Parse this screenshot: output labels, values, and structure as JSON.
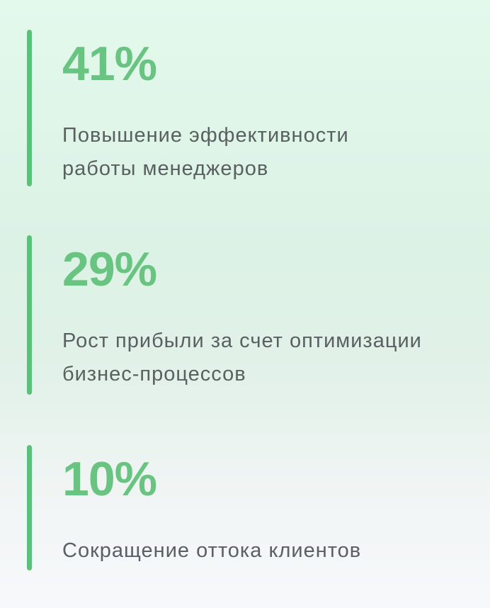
{
  "colors": {
    "background_top": "#e3f9ec",
    "background_bottom": "#f7f8fb",
    "accent_bar": "#5dc078",
    "value_green": "#69c482",
    "label_gray": "#5a5f62"
  },
  "stats": [
    {
      "value": "41%",
      "label": "Повышение эффективности работы менеджеров",
      "lines": [
        "Повышение эффективности",
        "работы менеджеров"
      ]
    },
    {
      "value": "29%",
      "label": "Рост прибыли за счет оптимизации бизнес-процессов",
      "lines": [
        "Рост прибыли за счет оптимизации",
        "бизнес-процессов"
      ]
    },
    {
      "value": "10%",
      "label": "Сокращение оттока клиентов",
      "lines": [
        "Сокращение оттока клиентов"
      ]
    }
  ],
  "chart_data": {
    "type": "table",
    "title": "",
    "unit": "%",
    "categories": [
      "Повышение эффективности работы менеджеров",
      "Рост прибыли за счет оптимизации бизнес-процессов",
      "Сокращение оттока клиентов"
    ],
    "values": [
      41,
      29,
      10
    ],
    "accent_color": "#69c482"
  }
}
